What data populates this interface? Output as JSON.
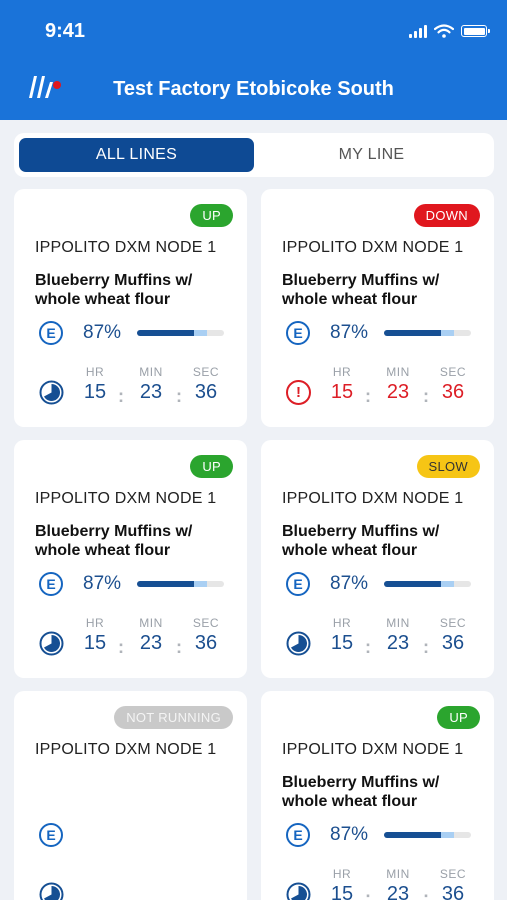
{
  "status_bar": {
    "time": "9:41"
  },
  "header": {
    "title": "Test Factory Etobicoke South"
  },
  "tabs": [
    {
      "label": "ALL LINES",
      "active": true
    },
    {
      "label": "MY LINE",
      "active": false
    }
  ],
  "colors": {
    "header": "#1a73d9",
    "active_tab": "#0e4a94",
    "up": "#2ba52e",
    "down": "#e0171e",
    "slow": "#f6c515",
    "not_running": "#c9c9c9"
  },
  "time_labels": {
    "hr": "HR",
    "min": "MIN",
    "sec": "SEC"
  },
  "cards": [
    {
      "status": "UP",
      "node": "IPPOLITO DXM NODE 1",
      "product": "Blueberry Muffins w/ whole wheat flour",
      "efficiency": "87%",
      "hr": "15",
      "min": "23",
      "sec": "36",
      "alert": false
    },
    {
      "status": "DOWN",
      "node": "IPPOLITO DXM NODE 1",
      "product": "Blueberry Muffins w/ whole wheat flour",
      "efficiency": "87%",
      "hr": "15",
      "min": "23",
      "sec": "36",
      "alert": true
    },
    {
      "status": "UP",
      "node": "IPPOLITO DXM NODE 1",
      "product": "Blueberry Muffins w/ whole wheat flour",
      "efficiency": "87%",
      "hr": "15",
      "min": "23",
      "sec": "36",
      "alert": false
    },
    {
      "status": "SLOW",
      "node": "IPPOLITO DXM NODE 1",
      "product": "Blueberry Muffins w/ whole wheat flour",
      "efficiency": "87%",
      "hr": "15",
      "min": "23",
      "sec": "36",
      "alert": false
    },
    {
      "status": "NOT RUNNING",
      "node": "IPPOLITO DXM NODE 1",
      "product": "",
      "efficiency": "",
      "hr": "",
      "min": "",
      "sec": "",
      "alert": false
    },
    {
      "status": "UP",
      "node": "IPPOLITO DXM NODE 1",
      "product": "Blueberry Muffins w/ whole wheat flour",
      "efficiency": "87%",
      "hr": "15",
      "min": "23",
      "sec": "36",
      "alert": false
    }
  ]
}
